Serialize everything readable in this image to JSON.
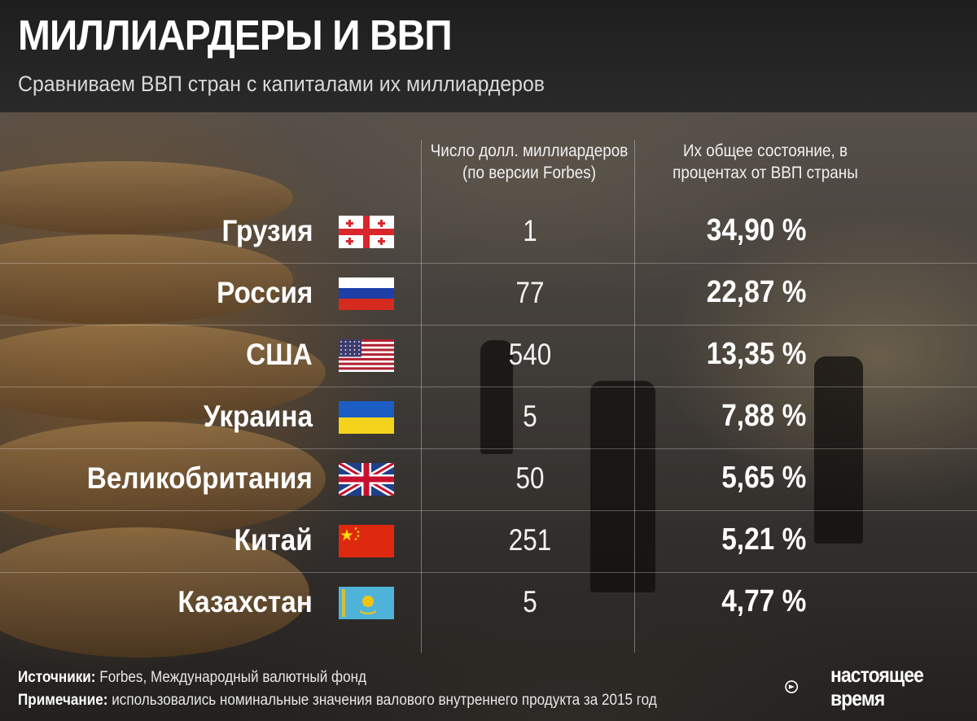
{
  "title": "МИЛЛИАРДЕРЫ И ВВП",
  "subtitle": "Сравниваем ВВП стран с капиталами их миллиардеров",
  "columns": {
    "count_header_1": "Число долл. миллиардеров",
    "count_header_2": "(по версии Forbes)",
    "pct_header_1": "Их общее состояние, в",
    "pct_header_2": "процентах от ВВП страны"
  },
  "chart_data": {
    "type": "table",
    "title": "МИЛЛИАРДЕРЫ И ВВП",
    "subtitle": "Сравниваем ВВП стран с капиталами их миллиардеров",
    "columns": [
      "Число долл. миллиардеров (по версии Forbes)",
      "Их общее состояние, в процентах от ВВП страны"
    ],
    "rows": [
      {
        "country": "Грузия",
        "billionaires": 1,
        "pct_gdp": "34,90 %",
        "flag": "georgia-flag"
      },
      {
        "country": "Россия",
        "billionaires": 77,
        "pct_gdp": "22,87 %",
        "flag": "russia-flag"
      },
      {
        "country": "США",
        "billionaires": 540,
        "pct_gdp": "13,35 %",
        "flag": "usa-flag"
      },
      {
        "country": "Украина",
        "billionaires": 5,
        "pct_gdp": "7,88 %",
        "flag": "ukraine-flag"
      },
      {
        "country": "Великобритания",
        "billionaires": 50,
        "pct_gdp": "5,65 %",
        "flag": "uk-flag"
      },
      {
        "country": "Китай",
        "billionaires": 251,
        "pct_gdp": "5,21 %",
        "flag": "china-flag"
      },
      {
        "country": "Казахстан",
        "billionaires": 5,
        "pct_gdp": "4,77 %",
        "flag": "kazakhstan-flag"
      }
    ]
  },
  "footer": {
    "sources_label": "Источники:",
    "sources_text": " Forbes, Международный валютный фонд",
    "note_label": "Примечание:",
    "note_text": " использовались номинальные значения валового внутреннего продукта за 2015 год"
  },
  "logo": {
    "line1": "настоящее",
    "line2": "время"
  },
  "colors": {
    "header_bg": "#222222",
    "text": "#ffffff"
  }
}
